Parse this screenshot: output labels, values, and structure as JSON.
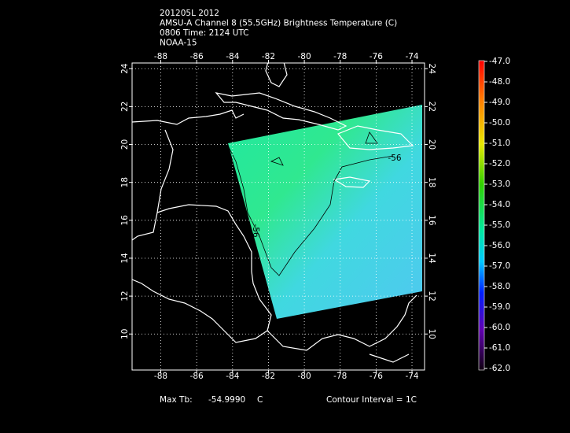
{
  "header": {
    "lines": [
      "201205L 2012",
      "AMSU-A Channel 8 (55.5GHz) Brightness Temperature (C)",
      "0806 Time: 2124 UTC",
      "NOAA-15"
    ]
  },
  "map": {
    "lon_range": [
      -89.6,
      -73.3
    ],
    "lat_range": [
      8.1,
      24.3
    ],
    "lon_ticks": [
      -88,
      -86,
      -84,
      -82,
      -80,
      -78,
      -76,
      -74
    ],
    "lat_ticks": [
      10,
      12,
      14,
      16,
      18,
      20,
      22,
      24
    ],
    "contour_labels": [
      -56,
      -56
    ]
  },
  "colorbar": {
    "range": [
      -62,
      -47
    ],
    "ticks": [
      {
        "value": -47,
        "label": "-47.0"
      },
      {
        "value": -48,
        "label": "-48.0"
      },
      {
        "value": -49,
        "label": "-49.0"
      },
      {
        "value": -50,
        "label": "-50.0"
      },
      {
        "value": -51,
        "label": "-51.0"
      },
      {
        "value": -52,
        "label": "-52.0"
      },
      {
        "value": -53,
        "label": "-53.0"
      },
      {
        "value": -54,
        "label": "-54.0"
      },
      {
        "value": -55,
        "label": "-55.0"
      },
      {
        "value": -56,
        "label": "-56.0"
      },
      {
        "value": -57,
        "label": "-57.0"
      },
      {
        "value": -58,
        "label": "-58.0"
      },
      {
        "value": -59,
        "label": "-59.0"
      },
      {
        "value": -60,
        "label": "-60.0"
      },
      {
        "value": -61,
        "label": "-61.0"
      },
      {
        "value": -62,
        "label": "-62.0"
      }
    ]
  },
  "footer": {
    "max_label": "Max Tb:",
    "max_value": "-54.9990",
    "max_unit": "C",
    "contour_interval": "Contour Interval = 1C"
  }
}
